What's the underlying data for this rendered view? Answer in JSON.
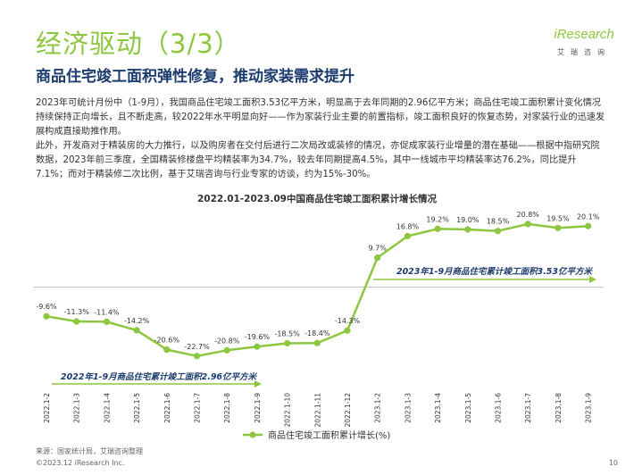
{
  "header": {
    "title": "经济驱动（3/3）",
    "subtitle": "商品住宅竣工面积弹性修复，推动家装需求提升"
  },
  "logo": {
    "word": "iResearch",
    "cn": "艾瑞咨询"
  },
  "paragraphs": [
    "2023年可统计月份中（1-9月），我国商品住宅竣工面积3.53亿平方米，明显高于去年同期的2.96亿平方米；商品住宅竣工面积累计变化情况持续保持正向增长，且不断走高，较2022年水平明显向好——作为家装行业主要的前置指标，竣工面积良好的恢复态势，对家装行业的迅速发展构成直接助推作用。",
    "此外，开发商对于精装房的大力推行，以及购房者在交付后进行二次局改或装修的情况，亦促成家装行业增量的潜在基础——根据中指研究院数据，2023年前三季度，全国精装修楼盘平均精装率为34.7%，较去年同期提高4.5%，其中一线城市平均精装率达76.2%，同比提升7.1%；而对于精装修二次比例，基于艾瑞咨询与行业专家的访谈，约为15%-30%。"
  ],
  "chart_data": {
    "type": "line",
    "title": "2022.01-2023.09中国商品住宅竣工面积累计增长情况",
    "categories": [
      "2022.1-2",
      "2022.1-3",
      "2022.1-4",
      "2022.1-5",
      "2022.1-6",
      "2022.1-7",
      "2022.1-8",
      "2022.1-9",
      "2022.1-10",
      "2022.1-11",
      "2022.1-12",
      "2023.1-2",
      "2023.1-3",
      "2023.1-4",
      "2023.1-5",
      "2023.1-6",
      "2023.1-7",
      "2023.1-8",
      "2023.1-9"
    ],
    "series": [
      {
        "name": "商品住宅竣工面积累计增长(%)",
        "values": [
          -9.6,
          -11.3,
          -11.4,
          -14.2,
          -20.6,
          -22.7,
          -20.8,
          -19.6,
          -18.5,
          -18.4,
          -14.3,
          9.7,
          16.8,
          19.2,
          19.0,
          18.5,
          20.8,
          19.5,
          20.1
        ],
        "labels": [
          "-9.6%",
          "-11.3%",
          "-11.4%",
          "-14.2%",
          "-20.6%",
          "-22.7%",
          "-20.8%",
          "-19.6%",
          "-18.5%",
          "-18.4%",
          "-14.3%",
          "9.7%",
          "16.8%",
          "19.2%",
          "19.0%",
          "18.5%",
          "20.8%",
          "19.5%",
          "20.1%"
        ],
        "color": "#8dc63f"
      }
    ],
    "annotations": [
      "2023年1-9月商品住宅累计竣工面积3.53亿平方米",
      "2022年1-9月商品住宅累计竣工面积2.96亿平方米"
    ],
    "ylim": [
      -26,
      24
    ],
    "grid": false,
    "legend": "bottom-center"
  },
  "footer": {
    "source": "来源：国家统计局，艾瑞咨询整理",
    "copyright": "©2023.12 iResearch Inc.",
    "page": "10"
  }
}
